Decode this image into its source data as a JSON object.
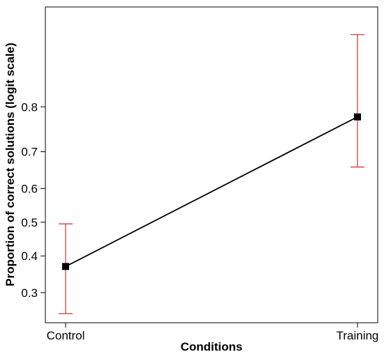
{
  "chart_data": {
    "type": "line",
    "xlabel": "Conditions",
    "ylabel": "Proportion of correct solutions (logit scale)",
    "y_scale": "logit",
    "ylim": [
      0.23,
      0.93
    ],
    "y_ticks": [
      "0.3",
      "0.4",
      "0.5",
      "0.6",
      "0.7",
      "0.8"
    ],
    "categories": [
      "Control",
      "Training"
    ],
    "series": [
      {
        "values": [
          0.37,
          0.78
        ],
        "ci_lower": [
          0.25,
          0.66
        ],
        "ci_upper": [
          0.495,
          0.905
        ]
      }
    ],
    "grid": false,
    "legend": "none",
    "colors": {
      "line": "#000000",
      "marker": "#000000",
      "error_bar": "#cc3333"
    }
  }
}
